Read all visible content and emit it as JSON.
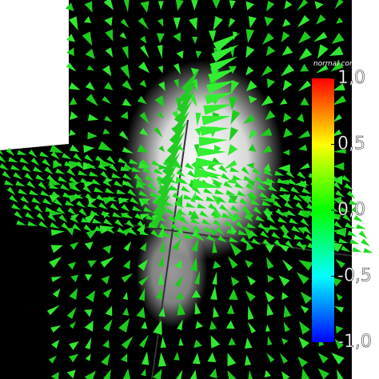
{
  "colorbar": {
    "title": "normal comp.",
    "range": [
      -1,
      1
    ],
    "ticks": [
      {
        "value": 1,
        "label": "1,0"
      },
      {
        "value": 0.5,
        "label": "0,5"
      },
      {
        "value": 0,
        "label": "0,0"
      },
      {
        "value": -0.5,
        "label": "-0,5"
      },
      {
        "value": -1,
        "label": "-1,0"
      }
    ]
  }
}
